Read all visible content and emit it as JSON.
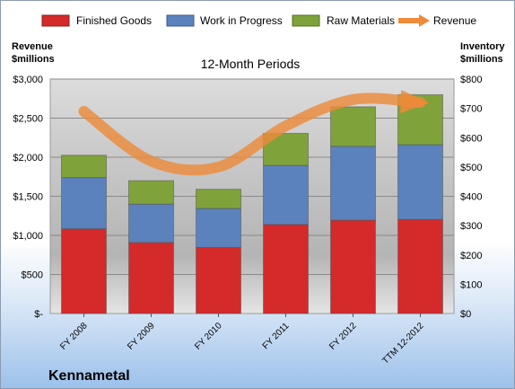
{
  "chart_data": {
    "type": "bar",
    "stacked": true,
    "title": "12-Month Periods",
    "company": "Kennametal",
    "categories": [
      "FY 2008",
      "FY 2009",
      "FY 2010",
      "FY 2011",
      "FY 2012",
      "TTM 12-2012"
    ],
    "series": [
      {
        "name": "Finished Goods",
        "axis": "left",
        "color": "#d42a2a",
        "values": [
          1085,
          910,
          845,
          1140,
          1195,
          1205
        ]
      },
      {
        "name": "Work in Progress",
        "axis": "left",
        "color": "#5b82bc",
        "values": [
          655,
          490,
          500,
          755,
          945,
          955
        ]
      },
      {
        "name": "Raw Materials",
        "axis": "left",
        "color": "#7fa33a",
        "values": [
          285,
          300,
          245,
          410,
          505,
          640
        ]
      },
      {
        "name": "Revenue",
        "axis": "right",
        "type": "line",
        "color": "#ed8b3a",
        "values": [
          690,
          520,
          500,
          640,
          730,
          720
        ]
      }
    ],
    "yleft": {
      "label_line1": "Revenue",
      "label_line2": "$millions",
      "ticks": [
        "$-",
        "$500",
        "$1,000",
        "$1,500",
        "$2,000",
        "$2,500",
        "$3,000"
      ],
      "ylim": [
        0,
        3000
      ]
    },
    "yright": {
      "label_line1": "Inventory",
      "label_line2": "$millions",
      "ticks": [
        "$0",
        "$100",
        "$200",
        "$300",
        "$400",
        "$500",
        "$600",
        "$700",
        "$800"
      ],
      "ylim": [
        0,
        800
      ]
    },
    "grid": true,
    "legend": "top"
  }
}
